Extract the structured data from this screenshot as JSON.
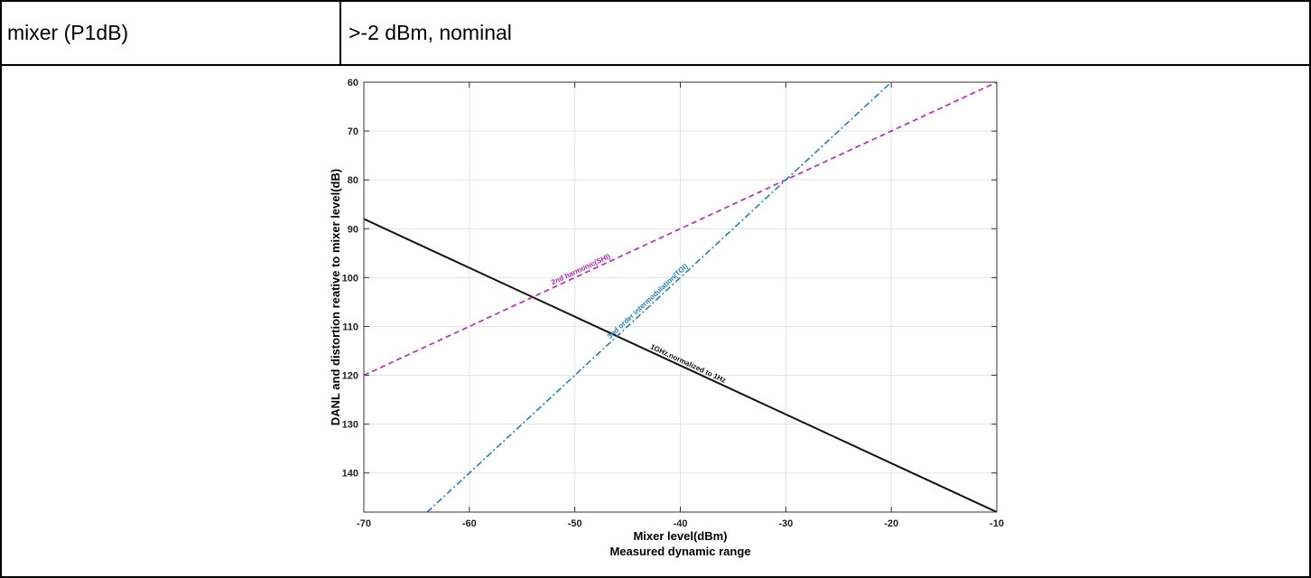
{
  "table": {
    "row1": {
      "label": "mixer (P1dB)",
      "value": ">-2 dBm, nominal"
    }
  },
  "chart_data": {
    "type": "line",
    "xlabel": "Mixer level(dBm)",
    "caption": "Measured dynamic range",
    "ylabel": "DANL and distortion reative to mixer level(dB)",
    "xlim": [
      -70,
      -10
    ],
    "ylim": [
      60,
      148
    ],
    "y_reversed": true,
    "xticks": [
      -70,
      -60,
      -50,
      -40,
      -30,
      -20,
      -10
    ],
    "yticks": [
      60,
      70,
      80,
      90,
      100,
      110,
      120,
      130,
      140
    ],
    "grid": true,
    "series": [
      {
        "name": "1GHz,normalized to 1Hz",
        "color": "#111111",
        "style": "solid",
        "x": [
          -70,
          -10
        ],
        "y": [
          88,
          148
        ]
      },
      {
        "name": "2nd harmonic(SHI)",
        "color": "#c020c0",
        "style": "dashed",
        "x": [
          -70,
          -10
        ],
        "y": [
          120,
          60
        ]
      },
      {
        "name": "3nd order intermodulation(TOI)",
        "color": "#1f7fc4",
        "style": "dashdot",
        "x": [
          -64,
          -20
        ],
        "y": [
          148,
          60
        ]
      }
    ]
  }
}
